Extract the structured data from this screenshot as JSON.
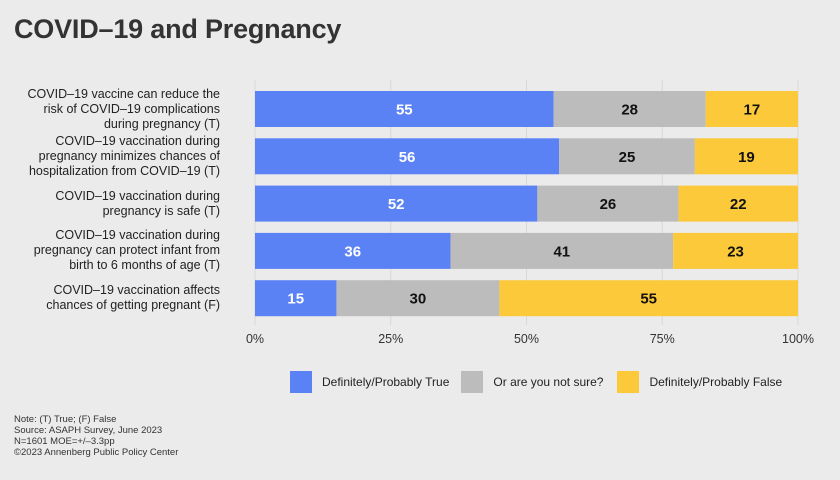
{
  "title": "COVID–19 and Pregnancy",
  "colors": {
    "true": "#5b82f5",
    "unsure": "#bcbcbc",
    "false": "#fcc93a",
    "true_text": "#ffffff",
    "other_text": "#111111",
    "grid": "#d8d8d8",
    "background": "#ebebeb"
  },
  "chart_data": {
    "type": "bar",
    "orientation": "horizontal",
    "stacked": true,
    "title": "COVID–19 and Pregnancy",
    "categories": [
      "COVID–19 vaccine can reduce the risk of COVID–19 complications during pregnancy (T)",
      "COVID–19 vaccination during pregnancy minimizes chances of hospitalization from COVID–19 (T)",
      "COVID–19 vaccination during pregnancy is safe (T)",
      "COVID–19 vaccination during pregnancy can protect infant from birth to 6 months of age (T)",
      "COVID–19 vaccination affects chances of getting pregnant (F)"
    ],
    "category_lines": [
      [
        "COVID–19 vaccine can reduce the",
        "risk of COVID–19 complications",
        "during pregnancy (T)"
      ],
      [
        "COVID–19 vaccination during",
        "pregnancy minimizes chances of",
        "hospitalization from COVID–19 (T)"
      ],
      [
        "COVID–19 vaccination during",
        "pregnancy is safe (T)"
      ],
      [
        "COVID–19 vaccination during",
        "pregnancy can protect infant from",
        "birth to 6 months of age (T)"
      ],
      [
        "COVID–19 vaccination affects",
        "chances of getting pregnant (F)"
      ]
    ],
    "series": [
      {
        "name": "Definitely/Probably True",
        "values": [
          55,
          56,
          52,
          36,
          15
        ]
      },
      {
        "name": "Or are you not sure?",
        "values": [
          28,
          25,
          26,
          41,
          30
        ]
      },
      {
        "name": "Definitely/Probably False",
        "values": [
          17,
          19,
          22,
          23,
          55
        ]
      }
    ],
    "xlim": [
      0,
      100
    ],
    "xticks": [
      "0%",
      "25%",
      "50%",
      "75%",
      "100%"
    ],
    "grid": true,
    "legend_position": "bottom"
  },
  "notes": [
    "Note: (T) True; (F) False",
    "Source: ASAPH Survey, June 2023",
    "N=1601 MOE=+/–3.3pp",
    "©2023 Annenberg Public Policy Center"
  ]
}
